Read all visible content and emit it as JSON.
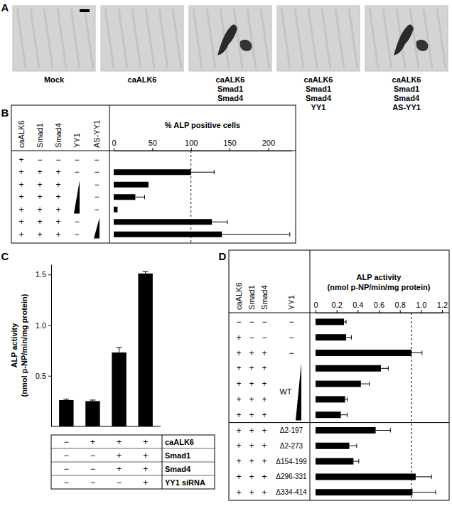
{
  "chart_data": [
    {
      "type": "image",
      "title": "A",
      "captions": [
        [
          "Mock"
        ],
        [
          "caALK6"
        ],
        [
          "caALK6",
          "Smad1",
          "Smad4"
        ],
        [
          "caALK6",
          "Smad1",
          "Smad4",
          "YY1"
        ],
        [
          "caALK6",
          "Smad1",
          "Smad4",
          "AS-YY1"
        ]
      ]
    },
    {
      "type": "bar",
      "title": "B",
      "orientation": "horizontal",
      "xlabel": "% ALP positive cells",
      "columns": [
        "caALK6",
        "Smad1",
        "Smad4",
        "YY1",
        "AS-YY1"
      ],
      "cells": [
        [
          "+",
          "−",
          "−",
          "−",
          "−"
        ],
        [
          "+",
          "+",
          "+",
          "−",
          "−"
        ],
        [
          "+",
          "+",
          "+",
          null,
          "−"
        ],
        [
          "+",
          "+",
          "+",
          null,
          "−"
        ],
        [
          "+",
          "+",
          "+",
          null,
          "−"
        ],
        [
          "+",
          "+",
          "+",
          "−",
          null
        ],
        [
          "+",
          "+",
          "+",
          "−",
          null
        ]
      ],
      "values": [
        0,
        100,
        45,
        28,
        5,
        127,
        140
      ],
      "errors": [
        null,
        30,
        null,
        12,
        null,
        20,
        88
      ],
      "reference_value": 100,
      "xlim": [
        0,
        230
      ],
      "xticks": [
        0,
        50,
        100,
        150,
        200
      ],
      "color": "#000000"
    },
    {
      "type": "bar",
      "title": "C",
      "ylabel": [
        "ALP activity",
        "(nmol p-NP/min/mg protein)"
      ],
      "row_labels": [
        "caALK6",
        "Smad1",
        "Smad4",
        "YY1 siRNA"
      ],
      "cells": [
        [
          "−",
          "+",
          "+",
          "+"
        ],
        [
          "−",
          "−",
          "+",
          "+"
        ],
        [
          "−",
          "−",
          "+",
          "+"
        ],
        [
          "−",
          "−",
          "−",
          "+"
        ]
      ],
      "values": [
        0.26,
        0.25,
        0.73,
        1.51
      ],
      "errors": [
        0.01,
        0.01,
        0.05,
        0.02
      ],
      "ylim": [
        0,
        1.6
      ],
      "yticks": [
        0.5,
        {
          "value": 1,
          "label": "1.0"
        },
        1.5
      ],
      "color": "#000000"
    },
    {
      "type": "bar",
      "title": "D",
      "orientation": "horizontal",
      "xlabel": [
        "ALP activity",
        "(nmol p-NP/min/mg protein)"
      ],
      "columns": [
        "caALK6",
        "Smad1",
        "Smad4",
        "YY1"
      ],
      "cells": [
        [
          "−",
          "−",
          "−",
          "−"
        ],
        [
          "+",
          "−",
          "−",
          "−"
        ],
        [
          "+",
          "+",
          "+",
          "−"
        ],
        [
          "+",
          "+",
          "+",
          null
        ],
        [
          "+",
          "+",
          "+",
          null
        ],
        [
          "+",
          "+",
          "+",
          null
        ],
        [
          "+",
          "+",
          "+",
          null
        ],
        [
          "+",
          "+",
          "+",
          "Δ2-197"
        ],
        [
          "+",
          "+",
          "+",
          "Δ2-273"
        ],
        [
          "+",
          "+",
          "+",
          "Δ154-199"
        ],
        [
          "+",
          "+",
          "+",
          "Δ296-331"
        ],
        [
          "+",
          "+",
          "+",
          "Δ334-414"
        ]
      ],
      "wedge_label": "WT",
      "values": [
        0.27,
        0.29,
        0.91,
        0.62,
        0.43,
        0.28,
        0.24,
        0.57,
        0.32,
        0.36,
        0.95,
        0.92
      ],
      "errors": [
        0.02,
        0.05,
        0.1,
        0.07,
        0.08,
        0.02,
        0.06,
        0.14,
        0.07,
        0.05,
        0.15,
        0.22
      ],
      "reference_value": 0.91,
      "xlim": [
        0,
        1.2
      ],
      "xticks": [
        0,
        0.2,
        0.4,
        0.6,
        0.8,
        {
          "value": 1,
          "label": "1.0"
        },
        1.2
      ],
      "color": "#000000"
    }
  ]
}
